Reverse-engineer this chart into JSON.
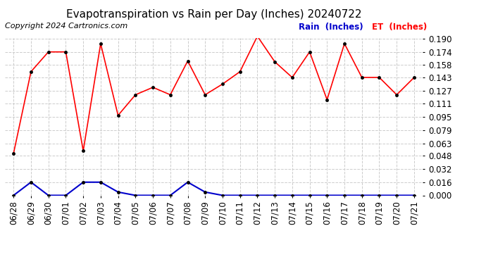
{
  "title": "Evapotranspiration vs Rain per Day (Inches) 20240722",
  "copyright": "Copyright 2024 Cartronics.com",
  "x_labels": [
    "06/28",
    "06/29",
    "06/30",
    "07/01",
    "07/02",
    "07/03",
    "07/04",
    "07/05",
    "07/06",
    "07/07",
    "07/08",
    "07/09",
    "07/10",
    "07/11",
    "07/12",
    "07/13",
    "07/14",
    "07/15",
    "07/16",
    "07/17",
    "07/18",
    "07/19",
    "07/20",
    "07/21"
  ],
  "et_values": [
    0.051,
    0.15,
    0.174,
    0.174,
    0.054,
    0.184,
    0.097,
    0.122,
    0.131,
    0.122,
    0.163,
    0.122,
    0.135,
    0.15,
    0.193,
    0.162,
    0.143,
    0.174,
    0.116,
    0.184,
    0.143,
    0.143,
    0.122,
    0.143
  ],
  "rain_values": [
    0.0,
    0.016,
    0.0,
    0.0,
    0.016,
    0.016,
    0.004,
    0.0,
    0.0,
    0.0,
    0.016,
    0.004,
    0.0,
    0.0,
    0.0,
    0.0,
    0.0,
    0.0,
    0.0,
    0.0,
    0.0,
    0.0,
    0.0,
    0.0
  ],
  "et_color": "#ff0000",
  "rain_color": "#0000cc",
  "et_label": "ET  (Inches)",
  "rain_label": "Rain  (Inches)",
  "ylim_min": 0.0,
  "ylim_max": 0.1905,
  "yticks": [
    0.0,
    0.016,
    0.032,
    0.048,
    0.063,
    0.079,
    0.095,
    0.111,
    0.127,
    0.143,
    0.158,
    0.174,
    0.19
  ],
  "background_color": "#ffffff",
  "grid_color": "#cccccc",
  "title_fontsize": 11,
  "tick_fontsize": 8.5,
  "copyright_fontsize": 8
}
